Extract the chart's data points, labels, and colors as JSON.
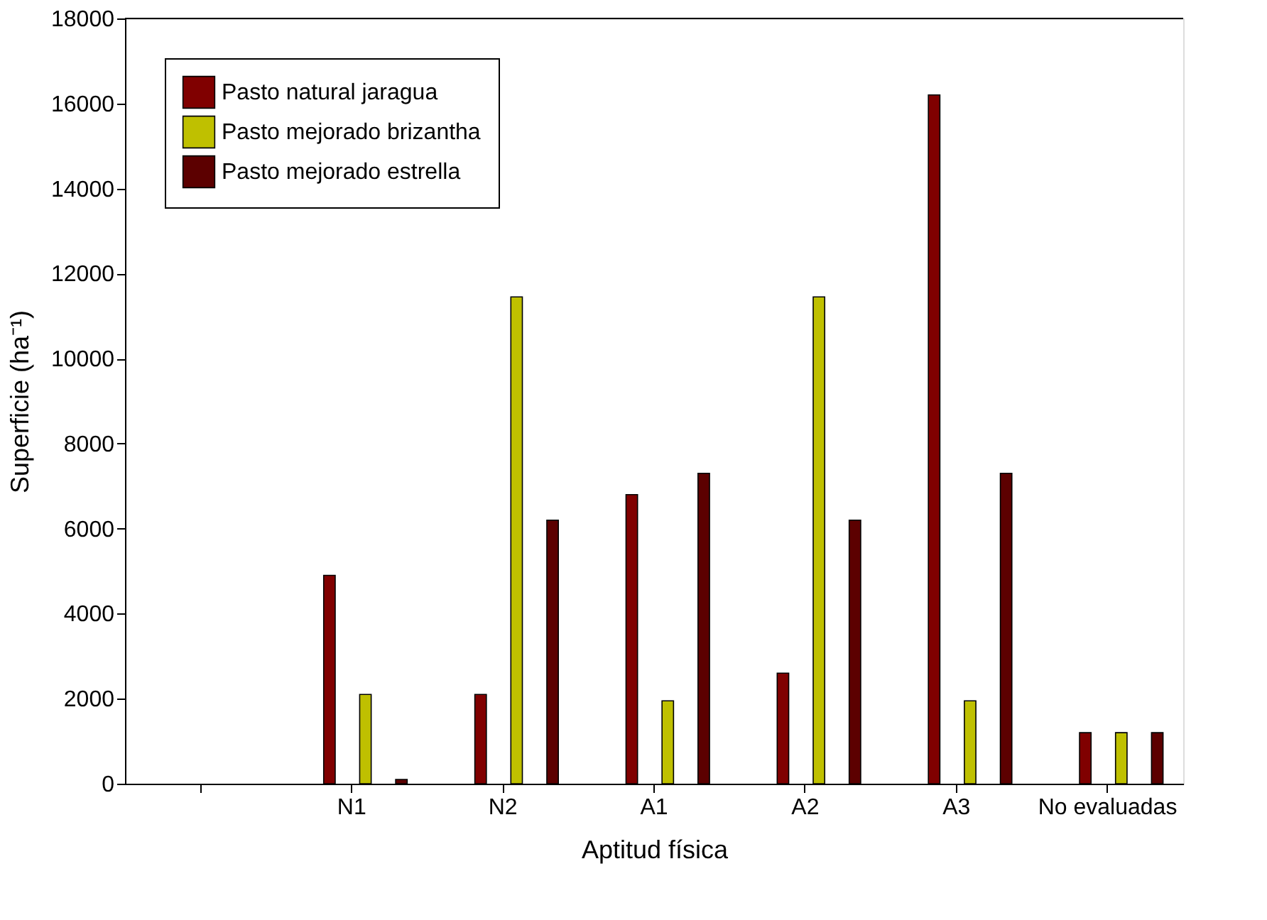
{
  "chart_data": {
    "type": "bar",
    "categories": [
      null,
      "N1",
      "N2",
      "A1",
      "A2",
      "A3",
      "No evaluadas"
    ],
    "xlabel": "Aptitud física",
    "ylabel": "Superficie (ha⁻¹)",
    "series": [
      {
        "name": "Pasto natural jaragua",
        "color": "#800000",
        "values": [
          null,
          4900,
          2100,
          6800,
          2600,
          16200,
          1200
        ]
      },
      {
        "name": "Pasto mejorado brizantha",
        "color": "#bfc000",
        "values": [
          null,
          2100,
          11450,
          1950,
          11450,
          1950,
          1200
        ]
      },
      {
        "name": "Pasto mejorado estrella",
        "color": "#5c0000",
        "values": [
          null,
          100,
          6200,
          7300,
          6200,
          7300,
          1200
        ]
      }
    ],
    "ylim": [
      0,
      18000
    ],
    "yticks": [
      0,
      2000,
      4000,
      6000,
      8000,
      10000,
      12000,
      14000,
      16000,
      18000
    ],
    "grid": false,
    "legend": "top left"
  }
}
